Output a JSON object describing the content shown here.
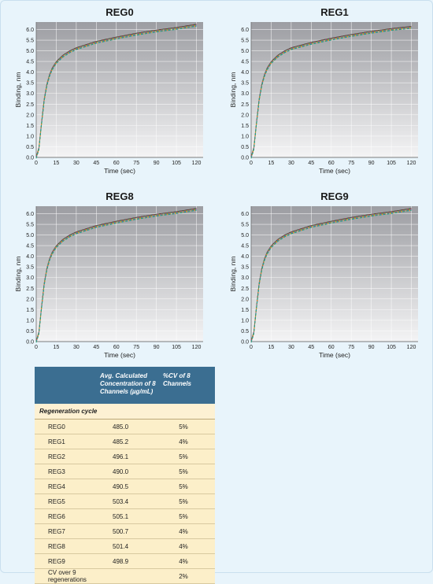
{
  "colors": {
    "plot_top": "#9c9da2",
    "plot_bottom": "#f4f4f5",
    "table_header": "#3b6e91",
    "table_row": "#fcefc9",
    "series": [
      "#3a3a3a",
      "#c0392b",
      "#27ae60",
      "#8e44ad",
      "#d4ac0d",
      "#2e86c1",
      "#e67e22",
      "#16a085"
    ]
  },
  "chart_data": [
    {
      "type": "line",
      "title": "REG0",
      "xlabel": "Time (sec)",
      "ylabel": "Binding, nm",
      "xlim": [
        0,
        125
      ],
      "ylim": [
        0,
        6.35
      ],
      "xticks": [
        0,
        15,
        30,
        45,
        60,
        75,
        90,
        105,
        120
      ],
      "yticks": [
        0.0,
        0.5,
        1.0,
        1.5,
        2.0,
        2.5,
        3.0,
        3.5,
        4.0,
        4.5,
        5.0,
        5.5,
        6.0
      ],
      "grid": true,
      "channels": 8,
      "x": [
        0,
        2,
        4,
        6,
        8,
        10,
        12,
        15,
        20,
        25,
        30,
        45,
        60,
        75,
        90,
        105,
        120
      ],
      "y": [
        0.0,
        0.4,
        1.6,
        2.7,
        3.4,
        3.85,
        4.15,
        4.45,
        4.75,
        4.95,
        5.1,
        5.4,
        5.6,
        5.78,
        5.93,
        6.05,
        6.2
      ]
    },
    {
      "type": "line",
      "title": "REG1",
      "xlabel": "Time (sec)",
      "ylabel": "Binding, nm",
      "xlim": [
        0,
        125
      ],
      "ylim": [
        0,
        6.35
      ],
      "xticks": [
        0,
        15,
        30,
        45,
        60,
        75,
        90,
        105,
        120
      ],
      "yticks": [
        0.0,
        0.5,
        1.0,
        1.5,
        2.0,
        2.5,
        3.0,
        3.5,
        4.0,
        4.5,
        5.0,
        5.5,
        6.0
      ],
      "grid": true,
      "channels": 8,
      "x": [
        0,
        2,
        4,
        6,
        8,
        10,
        12,
        15,
        20,
        25,
        30,
        45,
        60,
        75,
        90,
        105,
        120
      ],
      "y": [
        0.0,
        0.4,
        1.6,
        2.7,
        3.4,
        3.85,
        4.15,
        4.45,
        4.75,
        4.95,
        5.1,
        5.35,
        5.55,
        5.72,
        5.87,
        6.0,
        6.1
      ]
    },
    {
      "type": "line",
      "title": "REG8",
      "xlabel": "Time (sec)",
      "ylabel": "Binding, nm",
      "xlim": [
        0,
        125
      ],
      "ylim": [
        0,
        6.35
      ],
      "xticks": [
        0,
        15,
        30,
        45,
        60,
        75,
        90,
        105,
        120
      ],
      "yticks": [
        0.0,
        0.5,
        1.0,
        1.5,
        2.0,
        2.5,
        3.0,
        3.5,
        4.0,
        4.5,
        5.0,
        5.5,
        6.0
      ],
      "grid": true,
      "channels": 8,
      "x": [
        0,
        2,
        4,
        6,
        8,
        10,
        12,
        15,
        20,
        25,
        30,
        45,
        60,
        75,
        90,
        105,
        120
      ],
      "y": [
        0.0,
        0.4,
        1.6,
        2.7,
        3.4,
        3.85,
        4.15,
        4.45,
        4.75,
        4.95,
        5.1,
        5.4,
        5.6,
        5.78,
        5.93,
        6.05,
        6.2
      ]
    },
    {
      "type": "line",
      "title": "REG9",
      "xlabel": "Time (sec)",
      "ylabel": "Binding, nm",
      "xlim": [
        0,
        125
      ],
      "ylim": [
        0,
        6.35
      ],
      "xticks": [
        0,
        15,
        30,
        45,
        60,
        75,
        90,
        105,
        120
      ],
      "yticks": [
        0.0,
        0.5,
        1.0,
        1.5,
        2.0,
        2.5,
        3.0,
        3.5,
        4.0,
        4.5,
        5.0,
        5.5,
        6.0
      ],
      "grid": true,
      "channels": 8,
      "x": [
        0,
        2,
        4,
        6,
        8,
        10,
        12,
        15,
        20,
        25,
        30,
        45,
        60,
        75,
        90,
        105,
        120
      ],
      "y": [
        0.0,
        0.4,
        1.6,
        2.7,
        3.4,
        3.85,
        4.15,
        4.45,
        4.75,
        4.95,
        5.1,
        5.4,
        5.6,
        5.78,
        5.93,
        6.05,
        6.2
      ]
    },
    {
      "type": "table",
      "columns": [
        "",
        "Avg. Calculated Concentration of 8 Channels (µg/mL)",
        "%CV of 8 Channels"
      ],
      "section_label": "Regeneration cycle",
      "rows": [
        {
          "name": "REG0",
          "avg": "485.0",
          "cv": "5%"
        },
        {
          "name": "REG1",
          "avg": "485.2",
          "cv": "4%"
        },
        {
          "name": "REG2",
          "avg": "496.1",
          "cv": "5%"
        },
        {
          "name": "REG3",
          "avg": "490.0",
          "cv": "5%"
        },
        {
          "name": "REG4",
          "avg": "490.5",
          "cv": "5%"
        },
        {
          "name": "REG5",
          "avg": "503.4",
          "cv": "5%"
        },
        {
          "name": "REG6",
          "avg": "505.1",
          "cv": "5%"
        },
        {
          "name": "REG7",
          "avg": "500.7",
          "cv": "4%"
        },
        {
          "name": "REG8",
          "avg": "501.4",
          "cv": "4%"
        },
        {
          "name": "REG9",
          "avg": "498.9",
          "cv": "4%"
        }
      ],
      "footer": {
        "name": "CV over 9 regenerations",
        "avg": "",
        "cv": "2%"
      }
    }
  ]
}
